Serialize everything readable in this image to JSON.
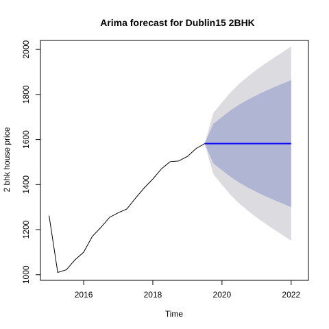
{
  "chart_data": {
    "type": "line",
    "title": "Arima forecast for Dublin15 2BHK",
    "xlabel": "Time",
    "ylabel": "2 bhk house price",
    "xlim": [
      2014.75,
      2022.5
    ],
    "ylim": [
      975,
      2040
    ],
    "x_ticks": [
      2016,
      2018,
      2020,
      2022
    ],
    "x_tick_labels": [
      "2016",
      "2018",
      "2020",
      "2022"
    ],
    "y_ticks": [
      1000,
      1200,
      1400,
      1600,
      1800,
      2000
    ],
    "y_tick_labels": [
      "1000",
      "1200",
      "1400",
      "1600",
      "1800",
      "2000"
    ],
    "grid": false,
    "series": [
      {
        "kind": "observed",
        "color": "#000000",
        "points": [
          [
            2015.0,
            1262
          ],
          [
            2015.25,
            1010
          ],
          [
            2015.5,
            1022
          ],
          [
            2015.75,
            1066
          ],
          [
            2016.0,
            1100
          ],
          [
            2016.25,
            1170
          ],
          [
            2016.5,
            1210
          ],
          [
            2016.75,
            1255
          ],
          [
            2017.0,
            1275
          ],
          [
            2017.25,
            1292
          ],
          [
            2017.5,
            1340
          ],
          [
            2017.75,
            1385
          ],
          [
            2018.0,
            1425
          ],
          [
            2018.25,
            1470
          ],
          [
            2018.5,
            1502
          ],
          [
            2018.75,
            1505
          ],
          [
            2019.0,
            1525
          ],
          [
            2019.25,
            1560
          ],
          [
            2019.5,
            1582
          ]
        ]
      },
      {
        "kind": "forecast",
        "color": "#0000ff",
        "points": [
          [
            2019.5,
            1582
          ],
          [
            2022.0,
            1582
          ]
        ]
      }
    ],
    "intervals": [
      {
        "level": "95%",
        "color": "#dbdbe0",
        "x": [
          2019.5,
          2019.75,
          2020.0,
          2020.25,
          2020.5,
          2020.75,
          2021.0,
          2021.25,
          2021.5,
          2021.75,
          2022.0
        ],
        "upper": [
          1582,
          1718,
          1765,
          1810,
          1848,
          1880,
          1910,
          1937,
          1963,
          1988,
          2013
        ],
        "lower": [
          1582,
          1446,
          1399,
          1354,
          1316,
          1284,
          1254,
          1227,
          1201,
          1176,
          1151
        ]
      },
      {
        "level": "80%",
        "color": "#b0b5d3",
        "x": [
          2019.5,
          2019.75,
          2020.0,
          2020.25,
          2020.5,
          2020.75,
          2021.0,
          2021.25,
          2021.5,
          2021.75,
          2022.0
        ],
        "upper": [
          1582,
          1670,
          1700,
          1730,
          1755,
          1777,
          1797,
          1815,
          1832,
          1848,
          1864
        ],
        "lower": [
          1582,
          1494,
          1464,
          1434,
          1409,
          1387,
          1367,
          1349,
          1332,
          1316,
          1300
        ]
      }
    ]
  }
}
